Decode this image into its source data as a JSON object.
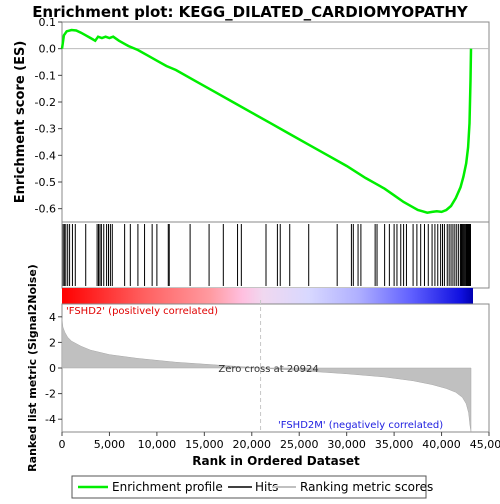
{
  "chart_data": {
    "type": "line",
    "title": "Enrichment plot: KEGG_DILATED_CARDIOMYOPATHY",
    "es_panel": {
      "ylabel": "Enrichment score (ES)",
      "ylim": [
        -0.65,
        0.1
      ],
      "yticks": [
        "0.1",
        "0.0",
        "-0.1",
        "-0.2",
        "-0.3",
        "-0.4",
        "-0.5",
        "-0.6"
      ],
      "ytick_values": [
        0.1,
        0.0,
        -0.1,
        -0.2,
        -0.3,
        -0.4,
        -0.5,
        -0.6
      ],
      "color": "#00ee00",
      "x": [
        0,
        200,
        500,
        1000,
        1500,
        2000,
        2500,
        3000,
        3500,
        3800,
        4200,
        4600,
        5000,
        5400,
        6000,
        7000,
        8000,
        9000,
        10000,
        11000,
        12000,
        14000,
        16000,
        18000,
        20000,
        22000,
        24000,
        26000,
        28000,
        30000,
        32000,
        33000,
        34000,
        35000,
        36000,
        37000,
        37500,
        38000,
        38500,
        39000,
        39500,
        40000,
        40500,
        41000,
        41500,
        42000,
        42300,
        42600,
        42800,
        42950,
        43050,
        43100
      ],
      "y": [
        0.0,
        0.05,
        0.065,
        0.07,
        0.068,
        0.06,
        0.05,
        0.04,
        0.03,
        0.045,
        0.04,
        0.045,
        0.04,
        0.045,
        0.03,
        0.01,
        -0.005,
        -0.025,
        -0.045,
        -0.065,
        -0.08,
        -0.12,
        -0.16,
        -0.2,
        -0.24,
        -0.28,
        -0.32,
        -0.36,
        -0.4,
        -0.44,
        -0.485,
        -0.505,
        -0.525,
        -0.55,
        -0.575,
        -0.595,
        -0.605,
        -0.61,
        -0.615,
        -0.612,
        -0.61,
        -0.612,
        -0.605,
        -0.59,
        -0.56,
        -0.52,
        -0.48,
        -0.43,
        -0.37,
        -0.28,
        -0.12,
        0.0
      ]
    },
    "hits": [
      120,
      250,
      400,
      600,
      800,
      1100,
      1400,
      2500,
      3700,
      3850,
      4000,
      4150,
      4400,
      4700,
      4900,
      5100,
      5300,
      6600,
      7200,
      8000,
      8700,
      9500,
      10000,
      11200,
      11300,
      13500,
      15500,
      17000,
      18500,
      18900,
      21500,
      22700,
      23000,
      24000,
      26000,
      29000,
      30500,
      30700,
      31200,
      31500,
      33000,
      33200,
      34000,
      34500,
      35000,
      35300,
      35700,
      36000,
      36300,
      37000,
      37400,
      37800,
      38200,
      38600,
      39000,
      39300,
      39600,
      39900,
      40100,
      40300,
      40600,
      40800,
      41000,
      41200,
      41400,
      41600,
      41800,
      42000,
      42100,
      42200,
      42300,
      42400,
      42500,
      42600,
      42650,
      42700,
      42750,
      42800,
      42850,
      42900,
      42950,
      43000,
      43050
    ],
    "metric_panel": {
      "ylabel": "Ranked list metric (Signal2Noise)",
      "ylim": [
        -5,
        5
      ],
      "yticks": [
        "4",
        "2",
        "0",
        "-2",
        "-4"
      ],
      "ytick_values": [
        4,
        2,
        0,
        -2,
        -4
      ],
      "x": [
        0,
        100,
        300,
        600,
        1000,
        2000,
        3000,
        5000,
        8000,
        12000,
        16000,
        20924,
        25000,
        30000,
        34000,
        37000,
        39000,
        40500,
        41500,
        42200,
        42600,
        42850,
        43000,
        43100
      ],
      "y": [
        3.9,
        3.2,
        2.8,
        2.4,
        2.1,
        1.7,
        1.4,
        1.05,
        0.75,
        0.45,
        0.25,
        0.0,
        -0.2,
        -0.45,
        -0.7,
        -1.0,
        -1.3,
        -1.6,
        -1.9,
        -2.3,
        -2.8,
        -3.5,
        -4.5,
        -5.0
      ]
    },
    "zero_cross_label": "Zero cross at 20924",
    "zero_cross_x": 20924,
    "pos_label": "'FSHD2' (positively correlated)",
    "neg_label": "'FSHD2M' (negatively correlated)",
    "xlabel": "Rank in Ordered Dataset",
    "xlim": [
      0,
      45000
    ],
    "xticks": [
      "0",
      "5,000",
      "10,000",
      "15,000",
      "20,000",
      "25,000",
      "30,000",
      "35,000",
      "40,000",
      "45,000"
    ],
    "xtick_values": [
      0,
      5000,
      10000,
      15000,
      20000,
      25000,
      30000,
      35000,
      40000,
      45000
    ],
    "legend": [
      {
        "label": "Enrichment profile",
        "color": "#00ee00"
      },
      {
        "label": "Hits",
        "color": "#000000"
      },
      {
        "label": "Ranking metric scores",
        "color": "#c0c0c0"
      }
    ],
    "legend_placement": "bottom"
  }
}
